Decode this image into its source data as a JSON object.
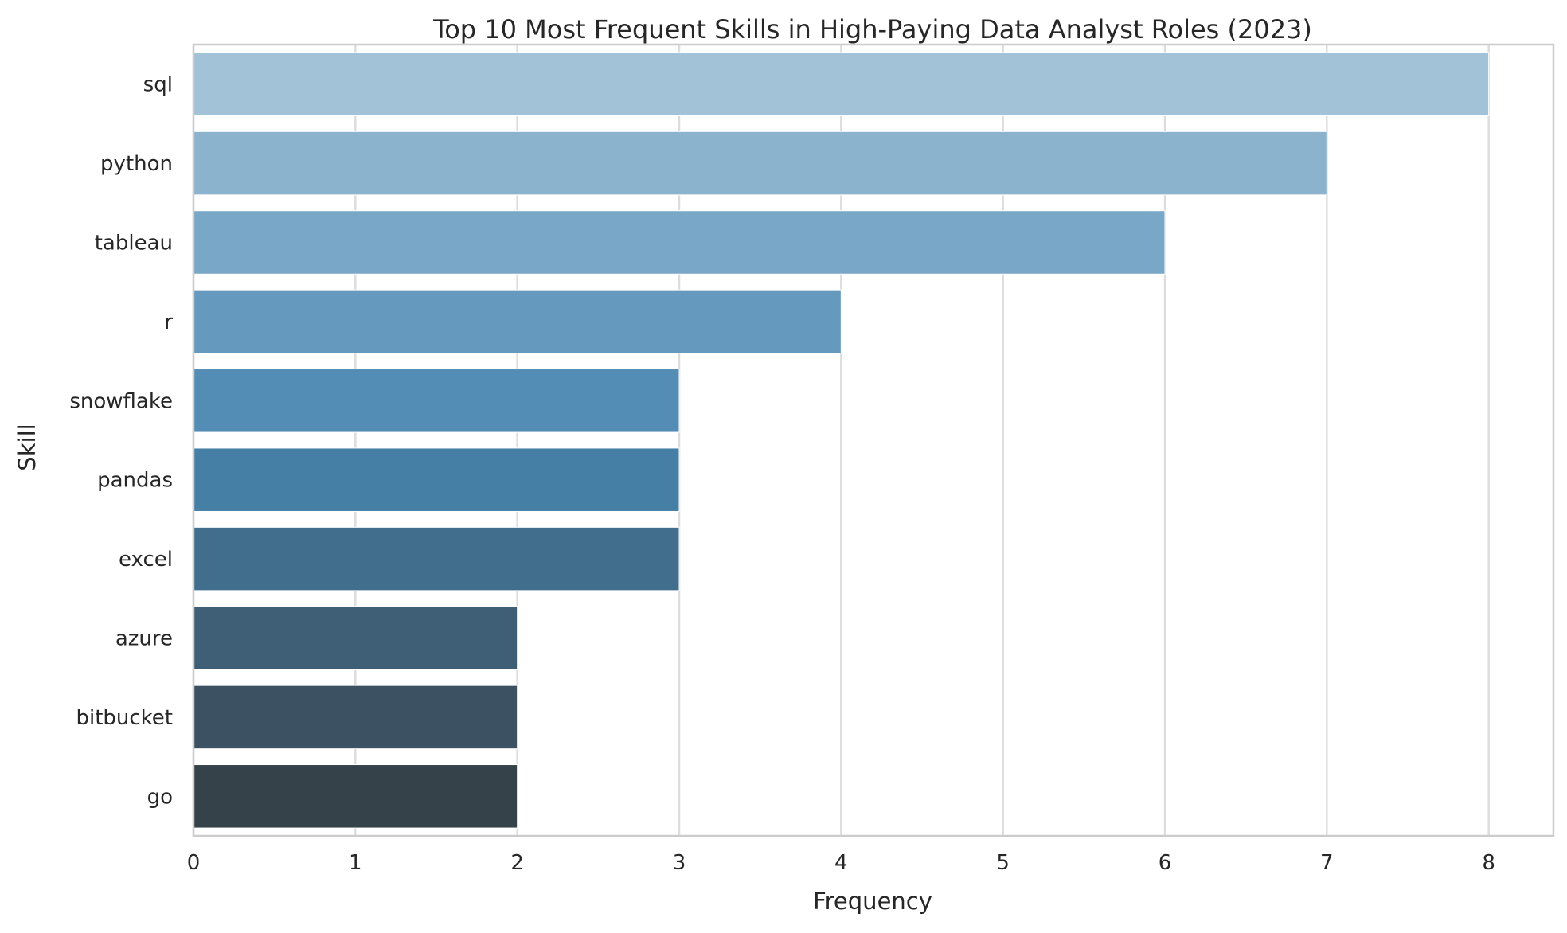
{
  "chart_data": {
    "type": "bar",
    "orientation": "horizontal",
    "title": "Top 10 Most Frequent Skills in High-Paying Data Analyst Roles (2023)",
    "xlabel": "Frequency",
    "ylabel": "Skill",
    "categories": [
      "sql",
      "python",
      "tableau",
      "r",
      "snowflake",
      "pandas",
      "excel",
      "azure",
      "bitbucket",
      "go"
    ],
    "values": [
      8,
      7,
      6,
      4,
      3,
      3,
      3,
      2,
      2,
      2
    ],
    "colors": [
      "#a1c2d7",
      "#8cb3ce",
      "#78a7c7",
      "#6599be",
      "#538cb5",
      "#467fa6",
      "#416e8d",
      "#3f5f77",
      "#3c5162",
      "#364249"
    ],
    "xlim": [
      0,
      8.4
    ],
    "xticks": [
      0,
      1,
      2,
      3,
      4,
      5,
      6,
      7,
      8
    ],
    "grid": true,
    "background": "#ffffff",
    "grid_color": "#dddddd",
    "spine_color": "#cccccc"
  }
}
